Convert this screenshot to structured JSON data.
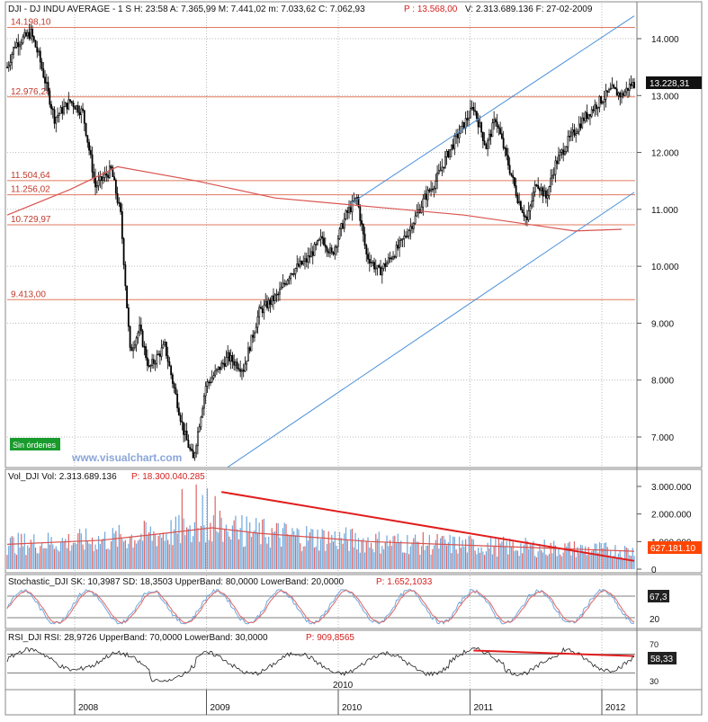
{
  "header": {
    "main": "DJI - DJ INDU AVERAGE - 1 S  H: 23:58  A: 7.365,99  M: 7.441,02  m: 7.033,62  C: 7.062,93",
    "main_p": "P : 13.568,00",
    "main_tail": "V: 2.313.689.136  F: 27-02-2009",
    "vol": "Vol_DJI  Vol: 2.313.689.136",
    "vol_p": "P: 18.300.040.285",
    "stoch": "Stochastic_DJI  SK: 10,3987  SD: 18,3503  UpperBand: 80,0000  LowerBand: 20,0000",
    "stoch_p": "P: 1.652,1033",
    "rsi": "RSI_DJI  RSI: 28,9726  UpperBand: 70,0000  LowerBand: 30,0000",
    "rsi_p": "P: 909,8565"
  },
  "badges": {
    "orders": "Sin órdenes",
    "watermark": "www.visualchart.com"
  },
  "colors": {
    "candle": "#000000",
    "level": "#e07a5f",
    "channel": "#4a90d9",
    "ma": "#d9534f",
    "trend": "#e01e1e",
    "vol_up": "#6fa8dc",
    "vol_down": "#e06666",
    "badge": "#1a9b2d",
    "tag": "#ff4500"
  },
  "chart_data": [
    {
      "type": "candlestick",
      "x_ticks": [
        "2008",
        "2009",
        "2010",
        "2011",
        "2012"
      ],
      "y_ticks": [
        "14.000",
        "13.000",
        "12.000",
        "11.000",
        "10.000",
        "9.000",
        "8.000",
        "7.000"
      ],
      "ylim": [
        6400,
        14350
      ],
      "levels": [
        {
          "value": 14198.1,
          "label": "14.198,10"
        },
        {
          "value": 12976.24,
          "label": "12.976,24"
        },
        {
          "value": 11504.64,
          "label": "11.504,64"
        },
        {
          "value": 11256.02,
          "label": "11.256,02"
        },
        {
          "value": 10729.97,
          "label": "10.729,97"
        },
        {
          "value": 9413.0,
          "label": "9.413,00"
        }
      ],
      "last_price": "13.228,31",
      "path": [
        [
          0,
          13500
        ],
        [
          5,
          13900
        ],
        [
          15,
          14100
        ],
        [
          20,
          13700
        ],
        [
          30,
          12600
        ],
        [
          40,
          12900
        ],
        [
          48,
          12700
        ],
        [
          56,
          11400
        ],
        [
          66,
          11700
        ],
        [
          72,
          10900
        ],
        [
          78,
          8500
        ],
        [
          84,
          8900
        ],
        [
          90,
          8200
        ],
        [
          100,
          8600
        ],
        [
          112,
          7100
        ],
        [
          118,
          6600
        ],
        [
          126,
          7900
        ],
        [
          140,
          8400
        ],
        [
          150,
          8200
        ],
        [
          160,
          9200
        ],
        [
          172,
          9500
        ],
        [
          180,
          9900
        ],
        [
          190,
          10100
        ],
        [
          200,
          10500
        ],
        [
          206,
          10200
        ],
        [
          215,
          10900
        ],
        [
          222,
          11200
        ],
        [
          228,
          10200
        ],
        [
          236,
          9900
        ],
        [
          242,
          10100
        ],
        [
          250,
          10400
        ],
        [
          258,
          10800
        ],
        [
          265,
          11200
        ],
        [
          272,
          11500
        ],
        [
          280,
          12000
        ],
        [
          288,
          12400
        ],
        [
          296,
          12800
        ],
        [
          304,
          12100
        ],
        [
          310,
          12600
        ],
        [
          318,
          11800
        ],
        [
          324,
          11200
        ],
        [
          330,
          10800
        ],
        [
          336,
          11500
        ],
        [
          342,
          11200
        ],
        [
          348,
          11800
        ],
        [
          356,
          12200
        ],
        [
          366,
          12600
        ],
        [
          376,
          12900
        ],
        [
          384,
          13100
        ],
        [
          390,
          13000
        ],
        [
          396,
          13200
        ]
      ],
      "channel_upper": [
        [
          218,
          11100
        ],
        [
          398,
          14400
        ]
      ],
      "channel_lower": [
        [
          140,
          6470
        ],
        [
          398,
          11300
        ]
      ],
      "ma": [
        [
          0,
          10900
        ],
        [
          40,
          11350
        ],
        [
          70,
          11750
        ],
        [
          120,
          11500
        ],
        [
          170,
          11200
        ],
        [
          230,
          11050
        ],
        [
          290,
          10900
        ],
        [
          340,
          10700
        ],
        [
          360,
          10620
        ],
        [
          390,
          10650
        ]
      ]
    },
    {
      "type": "bar",
      "name": "Vol_DJI",
      "y_ticks": [
        "3.000.000",
        "2.000.000",
        "1.000.000",
        "0"
      ],
      "ylim": [
        0,
        3000000
      ],
      "last_value": "627.181.10",
      "ma": [
        [
          0,
          900000
        ],
        [
          60,
          1050000
        ],
        [
          100,
          1300000
        ],
        [
          130,
          1500000
        ],
        [
          160,
          1300000
        ],
        [
          230,
          1000000
        ],
        [
          300,
          850000
        ],
        [
          398,
          650000
        ]
      ],
      "trend": [
        [
          136,
          2800000
        ],
        [
          398,
          300000
        ]
      ]
    },
    {
      "type": "line",
      "name": "Stochastic_DJI",
      "upper_band": 80,
      "lower_band": 20,
      "last_value": "67,3",
      "lower_label": "20"
    },
    {
      "type": "line",
      "name": "RSI_DJI",
      "upper_band": 70,
      "lower_band": 30,
      "ticks": [
        "70",
        "30"
      ],
      "x_label": "2010",
      "last_value": "58,33",
      "trend": [
        [
          296,
          78
        ],
        [
          398,
          66
        ]
      ]
    }
  ]
}
